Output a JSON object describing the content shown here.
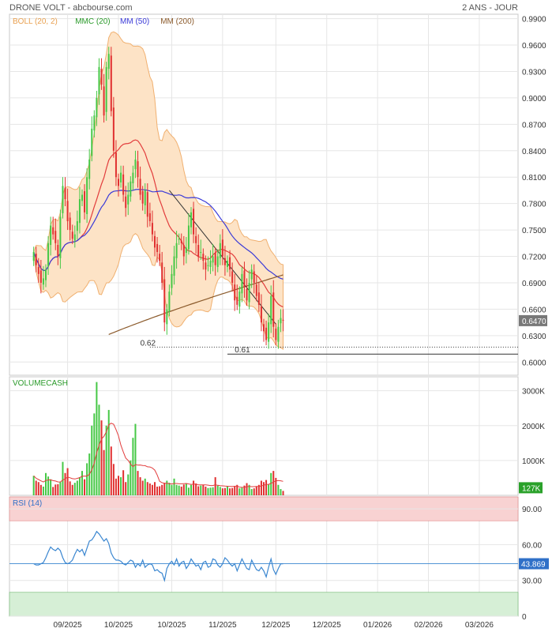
{
  "header": {
    "title": "DRONE VOLT - abcbourse.com",
    "period": "2 ANS - JOUR"
  },
  "colors": {
    "up": "#46c846",
    "down": "#e03030",
    "boll_fill": "#fde3c6",
    "boll_line": "#f0b070",
    "mmc20": "#e23c3c",
    "mm50": "#3a3ad8",
    "mm200": "#8b5a2b",
    "trend": "#333333",
    "rsi_line": "#3a86d0",
    "rsi_overbought": "#f8d2d2",
    "rsi_oversold": "#d6efd6",
    "last_badge": "#787878",
    "vol_badge": "#2aa12a",
    "rsi_badge": "#2f70c8"
  },
  "chart_data": [
    {
      "type": "candlestick",
      "panel": "price",
      "legend": [
        {
          "label": "BOLL (20, 2)",
          "color": "#e8a050"
        },
        {
          "label": "MMC (20)",
          "color": "#2a9a2a"
        },
        {
          "label": "MM (50)",
          "color": "#3a3ad8"
        },
        {
          "label": "MM (200)",
          "color": "#8b5a2b"
        }
      ],
      "ylim": [
        0.585,
        0.995
      ],
      "y_ticks": [
        "0.9900",
        "0.9600",
        "0.9300",
        "0.9000",
        "0.8700",
        "0.8400",
        "0.8100",
        "0.7800",
        "0.7500",
        "0.7200",
        "0.6900",
        "0.6600",
        "0.6300",
        "0.6000"
      ],
      "y_tick_values": [
        0.99,
        0.96,
        0.93,
        0.9,
        0.87,
        0.84,
        0.81,
        0.78,
        0.75,
        0.72,
        0.69,
        0.66,
        0.63,
        0.6
      ],
      "last_value": "0.6470",
      "closes": [
        0.725,
        0.71,
        0.7,
        0.69,
        0.695,
        0.705,
        0.735,
        0.755,
        0.745,
        0.735,
        0.72,
        0.765,
        0.8,
        0.785,
        0.76,
        0.75,
        0.74,
        0.745,
        0.76,
        0.785,
        0.79,
        0.77,
        0.81,
        0.83,
        0.865,
        0.88,
        0.9,
        0.935,
        0.915,
        0.88,
        0.935,
        0.95,
        0.885,
        0.84,
        0.81,
        0.8,
        0.815,
        0.79,
        0.775,
        0.79,
        0.805,
        0.815,
        0.83,
        0.81,
        0.79,
        0.78,
        0.795,
        0.765,
        0.76,
        0.745,
        0.73,
        0.725,
        0.715,
        0.69,
        0.645,
        0.66,
        0.68,
        0.7,
        0.72,
        0.735,
        0.74,
        0.735,
        0.72,
        0.73,
        0.755,
        0.77,
        0.745,
        0.735,
        0.72,
        0.725,
        0.715,
        0.705,
        0.71,
        0.715,
        0.72,
        0.71,
        0.72,
        0.735,
        0.72,
        0.71,
        0.715,
        0.705,
        0.69,
        0.67,
        0.665,
        0.68,
        0.7,
        0.685,
        0.67,
        0.69,
        0.705,
        0.69,
        0.675,
        0.665,
        0.645,
        0.635,
        0.625,
        0.645,
        0.675,
        0.64,
        0.625,
        0.64,
        0.65,
        0.647
      ],
      "price_labels": [
        {
          "text": "0.62",
          "value": 0.617
        },
        {
          "text": "0.61",
          "value": 0.609
        }
      ]
    },
    {
      "type": "bar",
      "panel": "volume",
      "legend": [
        {
          "label": "VOLUMECASH",
          "color": "#2a9a2a"
        }
      ],
      "ylim": [
        0,
        3400
      ],
      "y_ticks": [
        "3000K",
        "2000K",
        "1000K"
      ],
      "y_tick_values": [
        3000,
        2000,
        1000
      ],
      "last_value": "127K",
      "values": [
        560,
        420,
        380,
        300,
        250,
        640,
        540,
        460,
        240,
        310,
        320,
        380,
        960,
        640,
        780,
        400,
        300,
        360,
        420,
        520,
        700,
        460,
        920,
        1200,
        2000,
        2350,
        3250,
        2600,
        2150,
        1300,
        2000,
        2450,
        1400,
        900,
        480,
        560,
        520,
        720,
        380,
        600,
        1000,
        1650,
        2050,
        700,
        520,
        420,
        480,
        380,
        340,
        300,
        380,
        250,
        260,
        300,
        360,
        420,
        360,
        300,
        480,
        300,
        280,
        250,
        310,
        340,
        220,
        300,
        420,
        340,
        260,
        280,
        300,
        250,
        210,
        220,
        230,
        520,
        280,
        240,
        200,
        210,
        250,
        200,
        210,
        260,
        300,
        200,
        220,
        280,
        350,
        300,
        180,
        200,
        250,
        300,
        420,
        380,
        440,
        320,
        640,
        700,
        500,
        300,
        180,
        127
      ]
    },
    {
      "type": "line",
      "panel": "rsi",
      "legend": [
        {
          "label": "RSI (14)",
          "color": "#2f70c8"
        }
      ],
      "ylim": [
        0,
        100
      ],
      "y_ticks": [
        "90.00",
        "60.00",
        "30.00",
        "0"
      ],
      "y_tick_values": [
        90,
        60,
        30,
        0
      ],
      "last_value": "43.869",
      "values": [
        44,
        43,
        43,
        44,
        45,
        49,
        54,
        58,
        56,
        55,
        57,
        55,
        49,
        45,
        44,
        45,
        47,
        52,
        56,
        54,
        56,
        51,
        57,
        63,
        64,
        67,
        71,
        69,
        66,
        63,
        65,
        61,
        53,
        49,
        47,
        47,
        46,
        44,
        43,
        45,
        47,
        46,
        41,
        44,
        42,
        47,
        41,
        43,
        44,
        43,
        38,
        39,
        37,
        36,
        30,
        40,
        44,
        46,
        43,
        48,
        42,
        45,
        46,
        40,
        43,
        48,
        45,
        42,
        43,
        39,
        45,
        46,
        41,
        42,
        48,
        47,
        43,
        41,
        44,
        49,
        47,
        44,
        42,
        44,
        38,
        43,
        48,
        44,
        40,
        39,
        47,
        43,
        39,
        38,
        41,
        38,
        33,
        41,
        48,
        39,
        35,
        40,
        44,
        44
      ],
      "bands": {
        "upper": 80,
        "lower": 20
      }
    }
  ],
  "x_axis": {
    "labels": [
      "09/2025",
      "10/2025",
      "10/2025",
      "11/2025",
      "12/2025",
      "12/2025",
      "01/2026",
      "02/2026",
      "03/2026"
    ],
    "label_positions": [
      14,
      35,
      57,
      78,
      100,
      121,
      142,
      163,
      184
    ],
    "xlim": [
      -10,
      200
    ]
  }
}
